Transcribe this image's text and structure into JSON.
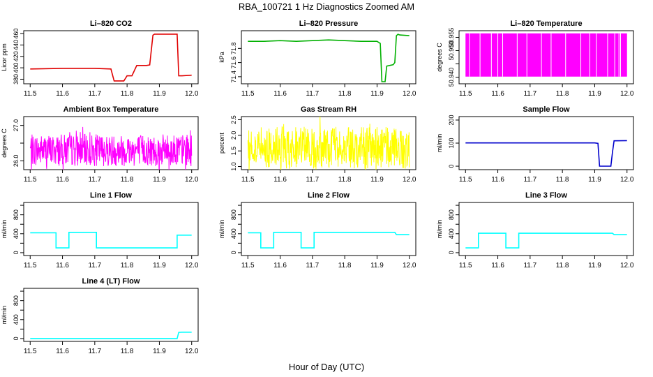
{
  "figure": {
    "title": "RBA_100721  1 Hz Diagnostics Zoomed AM",
    "xlabel": "Hour of Day (UTC)"
  },
  "chart_data": [
    {
      "type": "line",
      "title": "Li–820 CO2",
      "ylabel": "Licor ppm",
      "color": "#e00000",
      "xlim": [
        11.5,
        12.0
      ],
      "ylim": [
        372,
        465
      ],
      "xticks": [
        11.5,
        11.6,
        11.7,
        11.8,
        11.9,
        12.0
      ],
      "yticks": [
        380,
        400,
        420,
        440,
        460
      ],
      "series": [
        {
          "x": [
            11.5,
            11.6,
            11.7,
            11.75,
            11.76,
            11.79,
            11.8,
            11.815,
            11.83,
            11.86,
            11.87,
            11.88,
            11.885,
            11.955,
            11.96,
            11.97,
            12.0
          ],
          "y": [
            398,
            399,
            399,
            398,
            377,
            377,
            386,
            386,
            404,
            404,
            405,
            457,
            459,
            459,
            386,
            386,
            387
          ]
        }
      ]
    },
    {
      "type": "line",
      "title": "Li–820 Pressure",
      "ylabel": "kPa",
      "color": "#00b000",
      "xlim": [
        11.5,
        12.0
      ],
      "ylim": [
        71.3,
        72.05
      ],
      "xticks": [
        11.5,
        11.6,
        11.7,
        11.8,
        11.9,
        12.0
      ],
      "yticks": [
        71.4,
        71.6,
        71.8
      ],
      "yticklabels": [
        "71.4",
        "71.6",
        "71.8"
      ],
      "series": [
        {
          "x": [
            11.5,
            11.55,
            11.6,
            11.65,
            11.7,
            11.75,
            11.8,
            11.85,
            11.9,
            11.91,
            11.915,
            11.925,
            11.93,
            11.95,
            11.955,
            11.96,
            11.965,
            11.97,
            12.0
          ],
          "y": [
            71.9,
            71.9,
            71.91,
            71.9,
            71.91,
            71.92,
            71.91,
            71.9,
            71.9,
            71.87,
            71.33,
            71.33,
            71.55,
            71.57,
            71.6,
            71.98,
            72.0,
            71.99,
            71.98
          ]
        }
      ]
    },
    {
      "type": "area",
      "title": "Li–820 Temperature",
      "ylabel": "degrees C",
      "color": "#ff00ff",
      "xlim": [
        11.5,
        12.0
      ],
      "ylim": [
        50.9375,
        50.9575
      ],
      "xticks": [
        11.5,
        11.6,
        11.7,
        11.8,
        11.9,
        12.0
      ],
      "yticks": [
        50.94,
        50.945,
        50.95,
        50.955
      ],
      "yticklabels": [
        "50.940",
        "",
        "50.950",
        "50.955"
      ],
      "band": [
        50.9402,
        50.9565
      ],
      "gaps": [
        11.512,
        11.545,
        11.58,
        11.6,
        11.615,
        11.66,
        11.69,
        11.735,
        11.765,
        11.81,
        11.857,
        11.885,
        11.905,
        11.94,
        11.962,
        11.975,
        11.98
      ]
    },
    {
      "type": "line",
      "title": "Ambient Box Temperature",
      "ylabel": "degrees C",
      "color": "#ff00ff",
      "xlim": [
        11.5,
        12.0
      ],
      "ylim": [
        25.75,
        27.25
      ],
      "xticks": [
        11.5,
        11.6,
        11.7,
        11.8,
        11.9,
        12.0
      ],
      "yticks": [
        26.0,
        26.5,
        27.0
      ],
      "yticklabels": [
        "26.0",
        "",
        "27.0"
      ],
      "noise": {
        "center": 26.3,
        "amplitude": 0.9,
        "seed": 7
      }
    },
    {
      "type": "line",
      "title": "Gas Stream RH",
      "ylabel": "percent",
      "color": "#ffff00",
      "xlim": [
        11.5,
        12.0
      ],
      "ylim": [
        0.9,
        2.6
      ],
      "xticks": [
        11.5,
        11.6,
        11.7,
        11.8,
        11.9,
        12.0
      ],
      "yticks": [
        1.0,
        1.5,
        2.0,
        2.5
      ],
      "yticklabels": [
        "1.0",
        "1.5",
        "2.0",
        "2.5"
      ],
      "noise": {
        "center": 1.6,
        "amplitude": 1.35,
        "seed": 13
      }
    },
    {
      "type": "line",
      "title": "Sample Flow",
      "ylabel": "ml/min",
      "color": "#0000cc",
      "xlim": [
        11.5,
        12.0
      ],
      "ylim": [
        -15,
        215
      ],
      "xticks": [
        11.5,
        11.6,
        11.7,
        11.8,
        11.9,
        12.0
      ],
      "yticks": [
        0,
        100,
        200
      ],
      "series": [
        {
          "x": [
            11.5,
            11.6,
            11.7,
            11.8,
            11.9,
            11.91,
            11.915,
            11.95,
            11.955,
            11.96,
            12.0
          ],
          "y": [
            101,
            101,
            101,
            101,
            101,
            99,
            0,
            0,
            60,
            110,
            111
          ]
        }
      ]
    },
    {
      "type": "line",
      "title": "Line 1 Flow",
      "ylabel": "ml/min",
      "color": "#00ffff",
      "xlim": [
        11.5,
        12.0
      ],
      "ylim": [
        -60,
        1060
      ],
      "xticks": [
        11.5,
        11.6,
        11.7,
        11.8,
        11.9,
        12.0
      ],
      "yticks": [
        0,
        200,
        400,
        600,
        800,
        1000
      ],
      "yticklabels": [
        "0",
        "",
        "400",
        "",
        "800",
        ""
      ],
      "series": [
        {
          "x": [
            11.5,
            11.58,
            11.58,
            11.62,
            11.62,
            11.705,
            11.705,
            11.955,
            11.955,
            12.0
          ],
          "y": [
            420,
            420,
            100,
            100,
            430,
            430,
            100,
            100,
            370,
            370
          ]
        }
      ]
    },
    {
      "type": "line",
      "title": "Line 2 Flow",
      "ylabel": "ml/min",
      "color": "#00ffff",
      "xlim": [
        11.5,
        12.0
      ],
      "ylim": [
        -60,
        1060
      ],
      "xticks": [
        11.5,
        11.6,
        11.7,
        11.8,
        11.9,
        12.0
      ],
      "yticks": [
        0,
        200,
        400,
        600,
        800,
        1000
      ],
      "yticklabels": [
        "0",
        "",
        "400",
        "",
        "800",
        ""
      ],
      "series": [
        {
          "x": [
            11.5,
            11.54,
            11.54,
            11.58,
            11.58,
            11.665,
            11.665,
            11.705,
            11.705,
            11.955,
            11.96,
            12.0
          ],
          "y": [
            420,
            420,
            100,
            100,
            430,
            430,
            100,
            100,
            430,
            430,
            380,
            380
          ]
        }
      ]
    },
    {
      "type": "line",
      "title": "Line 3 Flow",
      "ylabel": "ml/min",
      "color": "#00ffff",
      "xlim": [
        11.5,
        12.0
      ],
      "ylim": [
        -60,
        1060
      ],
      "xticks": [
        11.5,
        11.6,
        11.7,
        11.8,
        11.9,
        12.0
      ],
      "yticks": [
        0,
        200,
        400,
        600,
        800,
        1000
      ],
      "yticklabels": [
        "0",
        "",
        "400",
        "",
        "800",
        ""
      ],
      "series": [
        {
          "x": [
            11.5,
            11.54,
            11.54,
            11.625,
            11.625,
            11.665,
            11.665,
            11.955,
            11.96,
            12.0
          ],
          "y": [
            100,
            100,
            410,
            410,
            100,
            100,
            410,
            410,
            380,
            380
          ]
        }
      ]
    },
    {
      "type": "line",
      "title": "Line 4 (LT) Flow",
      "ylabel": "ml/min",
      "color": "#00ffff",
      "xlim": [
        11.5,
        12.0
      ],
      "ylim": [
        -60,
        1060
      ],
      "xticks": [
        11.5,
        11.6,
        11.7,
        11.8,
        11.9,
        12.0
      ],
      "yticks": [
        0,
        200,
        400,
        600,
        800,
        1000
      ],
      "yticklabels": [
        "0",
        "",
        "400",
        "",
        "800",
        ""
      ],
      "series": [
        {
          "x": [
            11.5,
            11.955,
            11.96,
            11.97,
            12.0
          ],
          "y": [
            0,
            0,
            130,
            135,
            135
          ]
        }
      ]
    }
  ]
}
